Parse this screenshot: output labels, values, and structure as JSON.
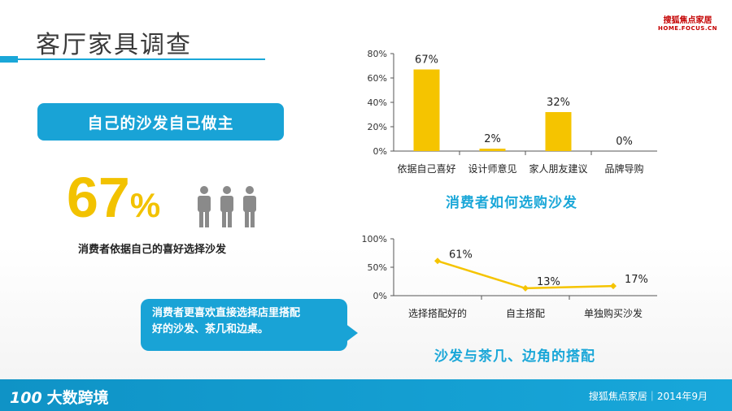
{
  "page": {
    "title": "客厅家具调查"
  },
  "logo": {
    "line1": "搜狐焦点家居",
    "line2": "HOME.FOCUS.CN"
  },
  "left": {
    "badge": "自己的沙发自己做主",
    "big_number": "67",
    "big_sign": "%",
    "caption": "消费者依据自己的喜好选择沙发",
    "callout_line1": "消费者更喜欢直接选择店里搭配",
    "callout_line2": "好的沙发、茶几和边桌。"
  },
  "footer": {
    "brand_mark": "100",
    "brand": "大数跨境",
    "right": "搜狐焦点家居｜2014年9月"
  },
  "colors": {
    "accent": "#19a3d6",
    "bar": "#f5c400",
    "line": "#f5c400"
  },
  "chart_data": [
    {
      "type": "bar",
      "title": "消费者如何选购沙发",
      "categories": [
        "依据自己喜好",
        "设计师意见",
        "家人朋友建议",
        "品牌导购"
      ],
      "values": [
        67,
        2,
        32,
        0
      ],
      "data_labels": [
        "67%",
        "2%",
        "32%",
        "0%"
      ],
      "y_ticks": [
        "0%",
        "20%",
        "40%",
        "60%",
        "80%"
      ],
      "ylim": [
        0,
        80
      ],
      "grid": false
    },
    {
      "type": "line",
      "title": "沙发与茶几、边角的搭配",
      "categories": [
        "选择搭配好的",
        "自主搭配",
        "单独购买沙发"
      ],
      "values": [
        61,
        13,
        17
      ],
      "data_labels": [
        "61%",
        "13%",
        "17%"
      ],
      "y_ticks": [
        "0%",
        "50%",
        "100%"
      ],
      "ylim": [
        0,
        100
      ],
      "grid": false
    }
  ]
}
